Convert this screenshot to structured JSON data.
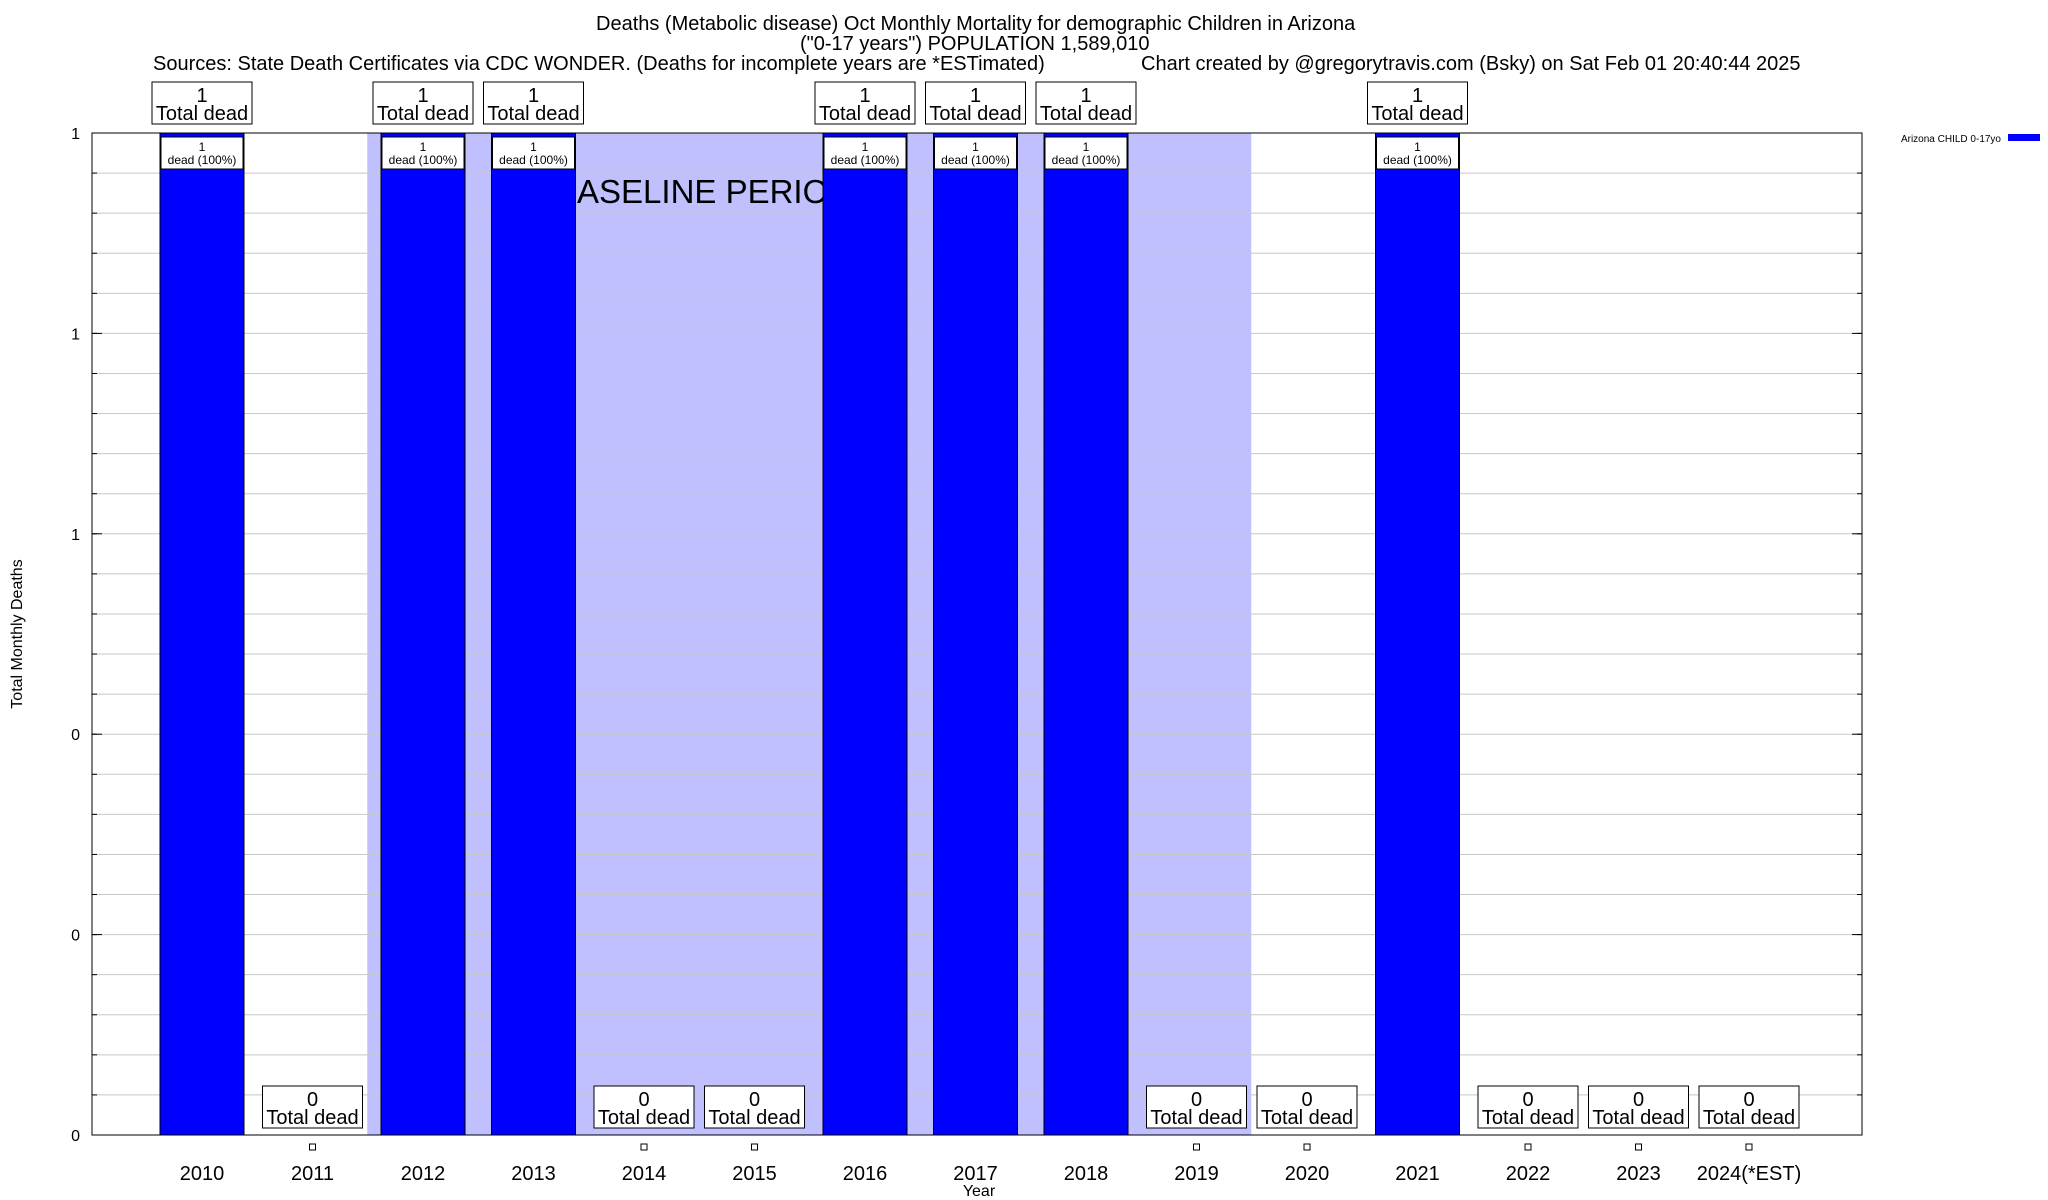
{
  "header": {
    "title_line1": "Deaths (Metabolic disease) Oct Monthly Mortality for demographic Children in Arizona",
    "title_line2": "(\"0-17 years\") POPULATION 1,589,010",
    "sources": "Sources: State Death Certificates via CDC WONDER. (Deaths for incomplete years are *ESTimated)",
    "credit": "Chart created by @gregorytravis.com (Bsky) on Sat Feb 01 20:40:44 2025"
  },
  "chart_data": {
    "type": "bar",
    "title": "Deaths (Metabolic disease) Oct Monthly Mortality for demographic Children in Arizona",
    "subtitle": "(\"0-17 years\") POPULATION 1,589,010",
    "xlabel": "Year",
    "ylabel": "Total Monthly Deaths",
    "ylim": [
      0,
      1
    ],
    "y_tick_labels": [
      "0",
      "0",
      "0",
      "1",
      "1",
      "1"
    ],
    "grid": true,
    "legend_position": "top-right",
    "baseline_label": "BASELINE PERIOD",
    "baseline_range": [
      "2012",
      "2019"
    ],
    "categories": [
      "2010",
      "2011",
      "2012",
      "2013",
      "2014",
      "2015",
      "2016",
      "2017",
      "2018",
      "2019",
      "2020",
      "2021",
      "2022",
      "2023",
      "2024(*EST)"
    ],
    "series": [
      {
        "name": "Arizona CHILD 0-17yo",
        "color": "#0000ff",
        "values": [
          1,
          0,
          1,
          1,
          0,
          0,
          1,
          1,
          1,
          0,
          0,
          1,
          0,
          0,
          0
        ]
      }
    ],
    "total_labels": [
      "1",
      "0",
      "1",
      "1",
      "0",
      "0",
      "1",
      "1",
      "1",
      "0",
      "0",
      "1",
      "0",
      "0",
      "0"
    ],
    "total_suffix": "Total dead",
    "bar_labels": [
      "1\ndead (100%)",
      "",
      "1\ndead (100%)",
      "1\ndead (100%)",
      "",
      "",
      "1\ndead (100%)",
      "1\ndead (100%)",
      "1\ndead (100%)",
      "",
      "",
      "1\ndead (100%)",
      "",
      "",
      ""
    ]
  },
  "colors": {
    "bar": "#0000ff",
    "baseline_shade": "#c0c0ff",
    "grid": "#c8c8c8"
  }
}
